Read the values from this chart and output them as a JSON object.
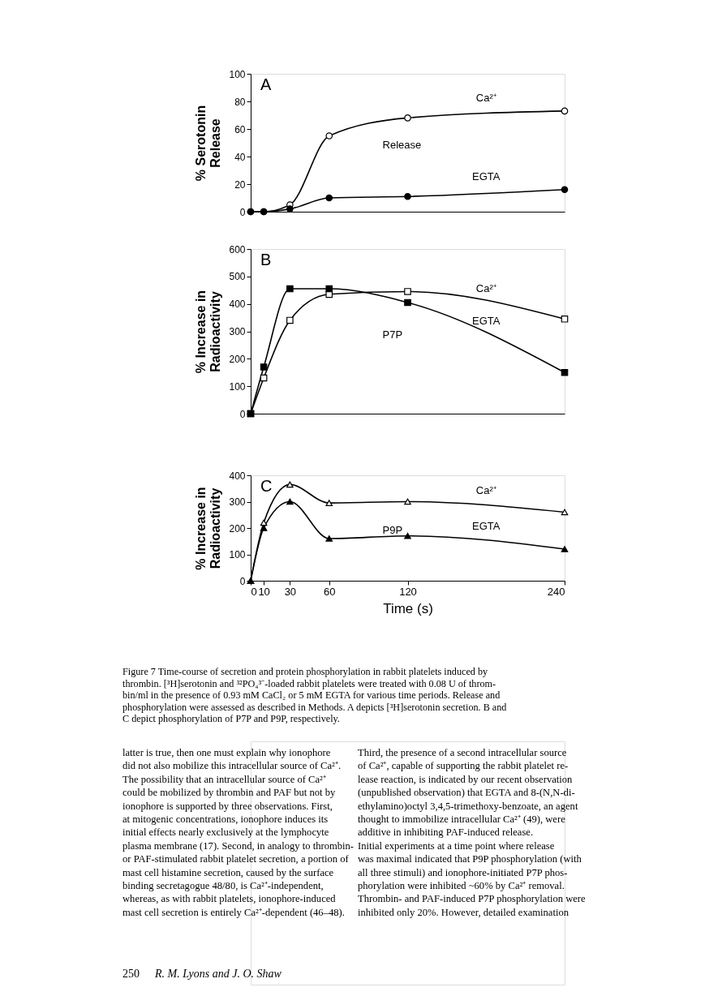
{
  "chart_data": [
    {
      "type": "line",
      "marker": "circle",
      "ylabel": "% Serotonin\nRelease",
      "xlim": [
        0,
        240
      ],
      "ylim": [
        0,
        100
      ],
      "yticks": [
        0,
        20,
        40,
        60,
        80,
        100
      ],
      "tick_labels": "y",
      "grid": false,
      "annotations": [
        "A",
        "Release"
      ],
      "x": [
        0,
        10,
        30,
        60,
        120,
        240
      ],
      "series": [
        {
          "name": "Ca²⁺",
          "color": "#000000",
          "values": [
            0,
            0,
            5,
            55,
            68,
            73
          ]
        },
        {
          "name": "EGTA",
          "color": "#000000",
          "values": [
            0,
            0,
            2,
            10,
            11,
            16
          ]
        }
      ]
    },
    {
      "type": "line",
      "marker": "square",
      "ylabel": "% Increase in\nRadioactivity",
      "xlim": [
        0,
        240
      ],
      "ylim": [
        0,
        600
      ],
      "yticks": [
        0,
        100,
        200,
        300,
        400,
        500,
        600
      ],
      "tick_labels": "y",
      "grid": false,
      "annotations": [
        "B",
        "P7P"
      ],
      "x": [
        0,
        10,
        30,
        60,
        120,
        240
      ],
      "series": [
        {
          "name": "Ca²⁺",
          "color": "#000000",
          "values": [
            0,
            130,
            340,
            435,
            445,
            345
          ]
        },
        {
          "name": "EGTA",
          "color": "#000000",
          "values": [
            0,
            170,
            455,
            455,
            405,
            150
          ]
        }
      ]
    },
    {
      "type": "line",
      "marker": "triangle",
      "ylabel": "% Increase in\nRadioactivity",
      "xlabel": "Time (s)",
      "xlim": [
        0,
        240
      ],
      "xticks": [
        0,
        10,
        30,
        60,
        120,
        240
      ],
      "ylim": [
        0,
        400
      ],
      "yticks": [
        0,
        100,
        200,
        300,
        400
      ],
      "grid": false,
      "annotations": [
        "C",
        "P9P"
      ],
      "x": [
        0,
        10,
        30,
        60,
        120,
        240
      ],
      "series": [
        {
          "name": "Ca²⁺",
          "color": "#000000",
          "values": [
            0,
            220,
            365,
            295,
            300,
            260
          ]
        },
        {
          "name": "EGTA",
          "color": "#000000",
          "values": [
            0,
            200,
            300,
            160,
            170,
            120
          ]
        }
      ]
    },
    {
      "type": "other",
      "annotations": [
        "Figure 7   Time-course of secretion and protein phosphorylation in rabbit platelets induced by\nthrombin. [³H]serotonin and ³²PO₄³⁻-loaded rabbit platelets were treated with 0.08 U of throm-\nbin/ml in the presence of 0.93 mM CaCl₂ or 5 mM EGTA for various time periods. Release and\nphosphorylation were assessed as described in Methods. A depicts [³H]serotonin secretion. B and\nC depict phosphorylation of P7P and P9P, respectively.",
        "latter is true, then one must explain why ionophore\ndid not also mobilize this intracellular source of Ca²⁺.\nThe possibility that an intracellular source of Ca²⁺\ncould be mobilized by thrombin and PAF but not by\nionophore is supported by three observations. First,\nat mitogenic concentrations, ionophore induces its\ninitial effects nearly exclusively at the lymphocyte\nplasma membrane (17). Second, in analogy to thrombin-\nor PAF-stimulated rabbit platelet secretion, a portion of\nmast cell histamine secretion, caused by the surface\nbinding secretagogue 48/80, is Ca²⁺-independent,\nwhereas, as with rabbit platelets, ionophore-induced\nmast cell secretion is entirely Ca²⁺-dependent (46–48).",
        "Third, the presence of a second intracellular source\nof Ca²⁺, capable of supporting the rabbit platelet re-\nlease reaction, is indicated by our recent observation\n(unpublished observation) that EGTA and 8-(N,N-di-\nethylamino)octyl 3,4,5-trimethoxy-benzoate, an agent\nthought to immobilize intracellular Ca²⁺ (49), were\nadditive in inhibiting PAF-induced release.\n   Initial experiments at a time point where release\nwas maximal indicated that P9P phosphorylation (with\nall three stimuli) and ionophore-initiated P7P phos-\nphorylation were inhibited ~60% by Ca²⁺ removal.\nThrombin- and PAF-induced P7P phosphorylation were\ninhibited only 20%. However, detailed examination",
        "250",
        "R. M. Lyons and J. O. Shaw"
      ]
    }
  ]
}
